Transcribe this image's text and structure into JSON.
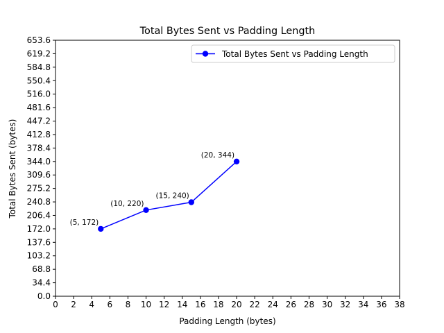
{
  "chart_data": {
    "type": "line",
    "title": "Total Bytes Sent vs Padding Length",
    "xlabel": "Padding Length (bytes)",
    "ylabel": "Total Bytes Sent (bytes)",
    "xlim": [
      0,
      38
    ],
    "ylim": [
      0,
      653.6
    ],
    "xticks": [
      "0",
      "2",
      "4",
      "6",
      "8",
      "10",
      "12",
      "14",
      "16",
      "18",
      "20",
      "22",
      "24",
      "26",
      "28",
      "30",
      "32",
      "34",
      "36",
      "38"
    ],
    "yticks": [
      "0.0",
      "34.4",
      "68.8",
      "103.2",
      "137.6",
      "172.0",
      "206.4",
      "240.8",
      "275.2",
      "309.6",
      "344.0",
      "378.4",
      "412.8",
      "447.2",
      "481.6",
      "516.0",
      "550.4",
      "584.8",
      "619.2",
      "653.6"
    ],
    "series": [
      {
        "name": "Total Bytes Sent vs Padding Length",
        "color": "#0000ff",
        "marker": "circle",
        "x": [
          5,
          10,
          15,
          20
        ],
        "y": [
          172,
          220,
          240,
          344
        ],
        "labels": [
          "(5, 172)",
          "(10, 220)",
          "(15, 240)",
          "(20, 344)"
        ]
      }
    ],
    "legend": {
      "position": "top-right"
    },
    "grid": false
  }
}
